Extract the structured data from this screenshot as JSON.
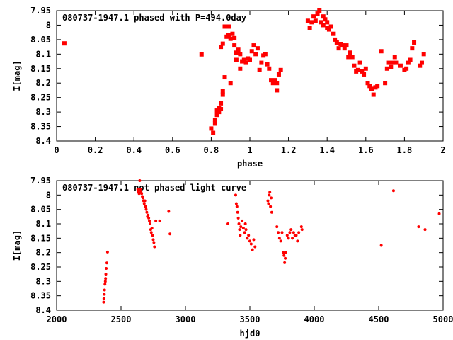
{
  "chart_data": [
    {
      "type": "scatter",
      "title": "080737-1947.1 phased with P=494.0day",
      "xlabel": "phase",
      "ylabel": "I[mag]",
      "xlim": [
        0,
        2
      ],
      "ylim": [
        8.4,
        7.95
      ],
      "y_inverted": true,
      "grid": false,
      "marker": "dot",
      "marker_color": "#ff0000",
      "x_ticks": [
        "0",
        "0.2",
        "0.4",
        "0.6",
        "0.8",
        "1",
        "1.2",
        "1.4",
        "1.6",
        "1.8",
        "2"
      ],
      "y_ticks": [
        "7.95",
        "8",
        "8.05",
        "8.1",
        "8.15",
        "8.2",
        "8.25",
        "8.3",
        "8.35",
        "8.4"
      ],
      "points": [
        [
          0.04,
          8.063
        ],
        [
          0.75,
          8.101
        ],
        [
          0.8,
          8.357
        ],
        [
          0.81,
          8.372
        ],
        [
          0.82,
          8.34
        ],
        [
          0.82,
          8.327
        ],
        [
          0.83,
          8.31
        ],
        [
          0.83,
          8.295
        ],
        [
          0.84,
          8.3
        ],
        [
          0.84,
          8.285
        ],
        [
          0.85,
          8.29
        ],
        [
          0.85,
          8.27
        ],
        [
          0.86,
          8.24
        ],
        [
          0.86,
          8.228
        ],
        [
          0.86,
          8.064
        ],
        [
          0.85,
          8.075
        ],
        [
          0.87,
          8.18
        ],
        [
          0.87,
          8.005
        ],
        [
          0.88,
          8.04
        ],
        [
          0.89,
          8.034
        ],
        [
          0.89,
          8.005
        ],
        [
          0.9,
          8.047
        ],
        [
          0.9,
          8.2
        ],
        [
          0.91,
          8.03
        ],
        [
          0.92,
          8.045
        ],
        [
          0.92,
          8.07
        ],
        [
          0.93,
          8.12
        ],
        [
          0.93,
          8.095
        ],
        [
          0.94,
          8.085
        ],
        [
          0.95,
          8.1
        ],
        [
          0.95,
          8.15
        ],
        [
          0.96,
          8.125
        ],
        [
          0.97,
          8.12
        ],
        [
          0.98,
          8.13
        ],
        [
          0.99,
          8.115
        ],
        [
          1.0,
          8.12
        ],
        [
          1.01,
          8.09
        ],
        [
          1.02,
          8.07
        ],
        [
          1.03,
          8.1
        ],
        [
          1.04,
          8.08
        ],
        [
          1.05,
          8.155
        ],
        [
          1.06,
          8.13
        ],
        [
          1.07,
          8.105
        ],
        [
          1.08,
          8.1
        ],
        [
          1.09,
          8.135
        ],
        [
          1.1,
          8.15
        ],
        [
          1.11,
          8.19
        ],
        [
          1.12,
          8.2
        ],
        [
          1.13,
          8.19
        ],
        [
          1.14,
          8.225
        ],
        [
          1.14,
          8.2
        ],
        [
          1.15,
          8.17
        ],
        [
          1.16,
          8.155
        ],
        [
          1.3,
          7.985
        ],
        [
          1.31,
          8.01
        ],
        [
          1.32,
          7.99
        ],
        [
          1.33,
          7.97
        ],
        [
          1.34,
          7.985
        ],
        [
          1.35,
          7.96
        ],
        [
          1.36,
          7.95
        ],
        [
          1.37,
          7.99
        ],
        [
          1.38,
          7.97
        ],
        [
          1.38,
          8.0
        ],
        [
          1.39,
          7.98
        ],
        [
          1.4,
          7.99
        ],
        [
          1.4,
          8.01
        ],
        [
          1.41,
          8.015
        ],
        [
          1.42,
          8.005
        ],
        [
          1.43,
          8.03
        ],
        [
          1.44,
          8.05
        ],
        [
          1.45,
          8.06
        ],
        [
          1.46,
          8.08
        ],
        [
          1.47,
          8.065
        ],
        [
          1.48,
          8.07
        ],
        [
          1.49,
          8.08
        ],
        [
          1.5,
          8.07
        ],
        [
          1.51,
          8.11
        ],
        [
          1.52,
          8.095
        ],
        [
          1.53,
          8.11
        ],
        [
          1.54,
          8.14
        ],
        [
          1.55,
          8.16
        ],
        [
          1.56,
          8.155
        ],
        [
          1.57,
          8.13
        ],
        [
          1.58,
          8.16
        ],
        [
          1.59,
          8.17
        ],
        [
          1.6,
          8.15
        ],
        [
          1.61,
          8.2
        ],
        [
          1.62,
          8.21
        ],
        [
          1.63,
          8.22
        ],
        [
          1.64,
          8.24
        ],
        [
          1.65,
          8.215
        ],
        [
          1.66,
          8.21
        ],
        [
          1.68,
          8.09
        ],
        [
          1.7,
          8.2
        ],
        [
          1.71,
          8.15
        ],
        [
          1.72,
          8.13
        ],
        [
          1.73,
          8.145
        ],
        [
          1.74,
          8.13
        ],
        [
          1.75,
          8.11
        ],
        [
          1.76,
          8.13
        ],
        [
          1.78,
          8.14
        ],
        [
          1.8,
          8.155
        ],
        [
          1.81,
          8.15
        ],
        [
          1.82,
          8.13
        ],
        [
          1.83,
          8.12
        ],
        [
          1.84,
          8.08
        ],
        [
          1.85,
          8.06
        ],
        [
          1.88,
          8.14
        ],
        [
          1.89,
          8.13
        ],
        [
          1.9,
          8.1
        ]
      ]
    },
    {
      "type": "scatter",
      "title": "080737-1947.1 not phased light curve",
      "xlabel": "hjd0",
      "ylabel": "I[mag]",
      "xlim": [
        2000,
        5000
      ],
      "ylim": [
        8.4,
        7.95
      ],
      "y_inverted": true,
      "grid": false,
      "marker": "dot",
      "marker_color": "#ff0000",
      "x_ticks": [
        "2000",
        "2500",
        "3000",
        "3500",
        "4000",
        "4500",
        "5000"
      ],
      "y_ticks": [
        "7.95",
        "8",
        "8.05",
        "8.1",
        "8.15",
        "8.2",
        "8.25",
        "8.3",
        "8.35",
        "8.4"
      ],
      "points": [
        [
          2365,
          8.372
        ],
        [
          2367,
          8.36
        ],
        [
          2370,
          8.345
        ],
        [
          2372,
          8.33
        ],
        [
          2375,
          8.31
        ],
        [
          2378,
          8.3
        ],
        [
          2380,
          8.29
        ],
        [
          2382,
          8.275
        ],
        [
          2385,
          8.255
        ],
        [
          2390,
          8.236
        ],
        [
          2395,
          8.198
        ],
        [
          2630,
          7.98
        ],
        [
          2635,
          7.99
        ],
        [
          2640,
          7.995
        ],
        [
          2645,
          7.95
        ],
        [
          2650,
          7.98
        ],
        [
          2655,
          7.99
        ],
        [
          2660,
          7.995
        ],
        [
          2665,
          8.005
        ],
        [
          2670,
          8.01
        ],
        [
          2675,
          8.02
        ],
        [
          2680,
          8.03
        ],
        [
          2685,
          8.02
        ],
        [
          2690,
          8.04
        ],
        [
          2695,
          8.05
        ],
        [
          2700,
          8.06
        ],
        [
          2705,
          8.075
        ],
        [
          2710,
          8.07
        ],
        [
          2715,
          8.08
        ],
        [
          2720,
          8.09
        ],
        [
          2725,
          8.1
        ],
        [
          2730,
          8.12
        ],
        [
          2735,
          8.13
        ],
        [
          2740,
          8.115
        ],
        [
          2745,
          8.14
        ],
        [
          2750,
          8.155
        ],
        [
          2755,
          8.165
        ],
        [
          2760,
          8.18
        ],
        [
          2770,
          8.09
        ],
        [
          2800,
          8.09
        ],
        [
          2870,
          8.057
        ],
        [
          2880,
          8.135
        ],
        [
          3330,
          8.1
        ],
        [
          3390,
          8.0
        ],
        [
          3395,
          8.03
        ],
        [
          3400,
          8.04
        ],
        [
          3405,
          8.06
        ],
        [
          3410,
          8.08
        ],
        [
          3415,
          8.1
        ],
        [
          3420,
          8.12
        ],
        [
          3425,
          8.14
        ],
        [
          3430,
          8.11
        ],
        [
          3440,
          8.09
        ],
        [
          3450,
          8.115
        ],
        [
          3460,
          8.13
        ],
        [
          3465,
          8.1
        ],
        [
          3470,
          8.12
        ],
        [
          3480,
          8.15
        ],
        [
          3490,
          8.14
        ],
        [
          3500,
          8.16
        ],
        [
          3510,
          8.17
        ],
        [
          3520,
          8.19
        ],
        [
          3530,
          8.155
        ],
        [
          3540,
          8.18
        ],
        [
          3640,
          8.02
        ],
        [
          3645,
          8.03
        ],
        [
          3650,
          8.0
        ],
        [
          3655,
          7.99
        ],
        [
          3660,
          8.04
        ],
        [
          3665,
          8.01
        ],
        [
          3670,
          8.06
        ],
        [
          3710,
          8.11
        ],
        [
          3720,
          8.13
        ],
        [
          3730,
          8.15
        ],
        [
          3740,
          8.16
        ],
        [
          3750,
          8.13
        ],
        [
          3760,
          8.2
        ],
        [
          3765,
          8.21
        ],
        [
          3770,
          8.235
        ],
        [
          3775,
          8.22
        ],
        [
          3780,
          8.2
        ],
        [
          3790,
          8.14
        ],
        [
          3800,
          8.15
        ],
        [
          3810,
          8.13
        ],
        [
          3820,
          8.12
        ],
        [
          3830,
          8.15
        ],
        [
          3840,
          8.13
        ],
        [
          3850,
          8.14
        ],
        [
          3860,
          8.14
        ],
        [
          3870,
          8.16
        ],
        [
          3880,
          8.13
        ],
        [
          3900,
          8.11
        ],
        [
          3905,
          8.12
        ],
        [
          4520,
          8.175
        ],
        [
          4615,
          7.985
        ],
        [
          4810,
          8.11
        ],
        [
          4860,
          8.12
        ],
        [
          4970,
          8.065
        ]
      ]
    }
  ]
}
